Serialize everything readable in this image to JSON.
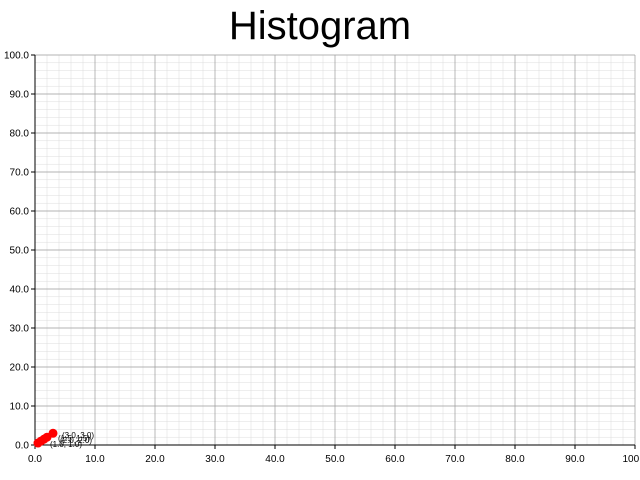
{
  "chart_data": {
    "type": "scatter",
    "title": "Histogram",
    "xlabel": "",
    "ylabel": "",
    "xlim": [
      0,
      100
    ],
    "ylim": [
      0,
      100
    ],
    "x_ticks": [
      "0.0",
      "10.0",
      "20.0",
      "30.0",
      "40.0",
      "50.0",
      "60.0",
      "70.0",
      "80.0",
      "90.0",
      "100.0"
    ],
    "y_ticks": [
      "0.0",
      "10.0",
      "20.0",
      "30.0",
      "40.0",
      "50.0",
      "60.0",
      "70.0",
      "80.0",
      "90.0",
      "100.0"
    ],
    "grid": true,
    "series": [
      {
        "color": "#ff0000",
        "points": [
          {
            "x": 0.5,
            "y": 0.5
          },
          {
            "x": 1.0,
            "y": 1.0
          },
          {
            "x": 1.5,
            "y": 1.5
          },
          {
            "x": 2.0,
            "y": 2.0
          },
          {
            "x": 3.0,
            "y": 3.0
          }
        ]
      }
    ],
    "annotations": [
      "(1.0, 1.0)",
      "(1.5, 1.5)",
      "(2.0, 2.0)",
      "(3.0, 3.0)"
    ]
  }
}
